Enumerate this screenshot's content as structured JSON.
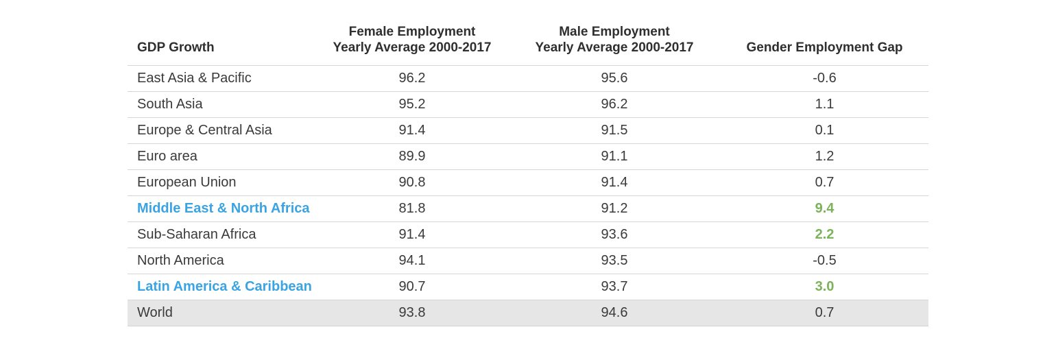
{
  "colors": {
    "region_highlight": "#3aa3e3",
    "gap_highlight": "#7bb25a",
    "total_row_bg": "#e6e6e6"
  },
  "table": {
    "headers": [
      "GDP Growth",
      "Female Employment\nYearly Average 2000-2017",
      "Male Employment\nYearly Average 2000-2017",
      "Gender Employment Gap"
    ],
    "rows": [
      {
        "region": "East Asia & Pacific",
        "female": "96.2",
        "male": "95.6",
        "gap": "-0.6"
      },
      {
        "region": "South Asia",
        "female": "95.2",
        "male": "96.2",
        "gap": "1.1"
      },
      {
        "region": "Europe & Central Asia",
        "female": "91.4",
        "male": "91.5",
        "gap": "0.1"
      },
      {
        "region": "Euro area",
        "female": "89.9",
        "male": "91.1",
        "gap": "1.2"
      },
      {
        "region": "European Union",
        "female": "90.8",
        "male": "91.4",
        "gap": "0.7"
      },
      {
        "region": "Middle East & North Africa",
        "female": "81.8",
        "male": "91.2",
        "gap": "9.4"
      },
      {
        "region": "Sub-Saharan Africa",
        "female": "91.4",
        "male": "93.6",
        "gap": "2.2"
      },
      {
        "region": "North America",
        "female": "94.1",
        "male": "93.5",
        "gap": "-0.5"
      },
      {
        "region": "Latin America & Caribbean",
        "female": "90.7",
        "male": "93.7",
        "gap": "3.0"
      },
      {
        "region": "World",
        "female": "93.8",
        "male": "94.6",
        "gap": "0.7"
      }
    ]
  }
}
